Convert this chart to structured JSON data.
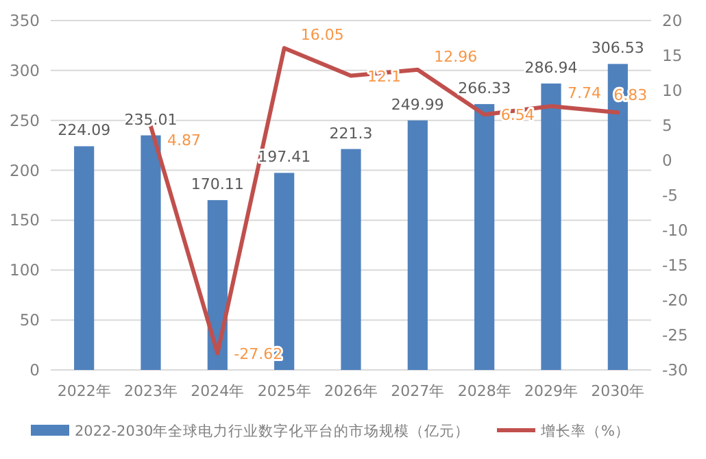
{
  "chart_data": {
    "type": "bar",
    "categories": [
      "2022年",
      "2023年",
      "2024年",
      "2025年",
      "2026年",
      "2027年",
      "2028年",
      "2029年",
      "2030年"
    ],
    "series": [
      {
        "name": "2022-2030年全球电力行业数字化平台的市场规模（亿元）",
        "color": "#4f81bd",
        "values": [
          224.09,
          235.01,
          170.11,
          197.41,
          221.3,
          249.99,
          266.33,
          286.94,
          306.53
        ]
      },
      {
        "name": "增长率（%）",
        "type": "line",
        "axis": "y2",
        "color": "#c0504d",
        "values": [
          null,
          4.87,
          -27.62,
          16.05,
          12.1,
          12.96,
          6.54,
          7.74,
          6.83
        ]
      }
    ],
    "ylim": [
      0,
      350
    ],
    "yticks": [
      0,
      50,
      100,
      150,
      200,
      250,
      300,
      350
    ],
    "y2lim": [
      -30,
      20
    ],
    "y2ticks": [
      -30,
      -25,
      -20,
      -15,
      -10,
      -5,
      0,
      5,
      10,
      15,
      20
    ],
    "grid": "y",
    "legend": "bottom",
    "data_labels": true,
    "marker": "none",
    "line_style": "solid"
  }
}
